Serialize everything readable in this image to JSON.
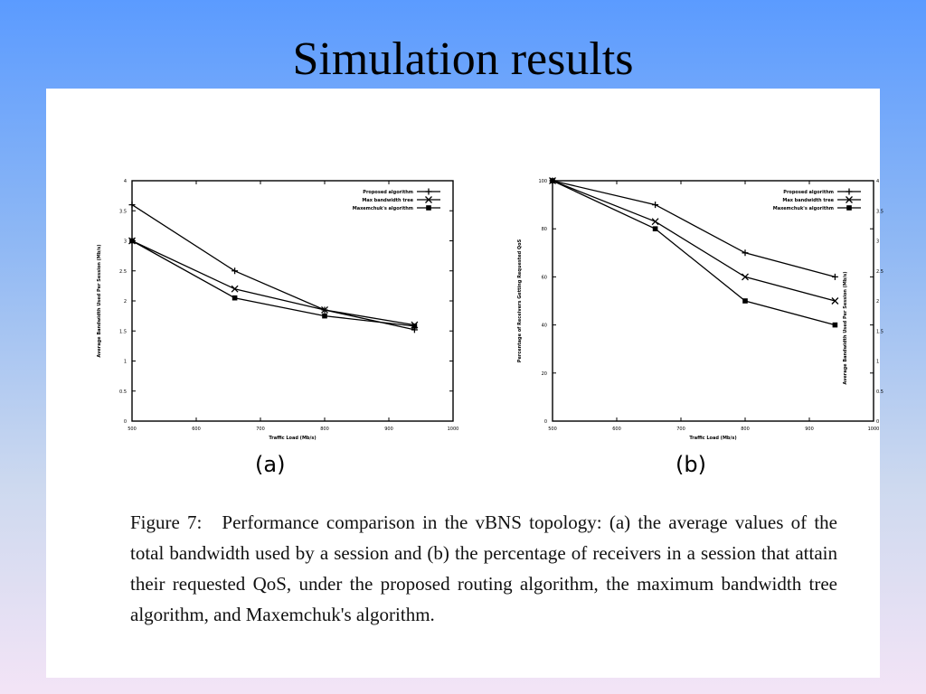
{
  "slide": {
    "title": "Simulation results"
  },
  "figure": {
    "caption_label": "Figure 7:",
    "caption_text": "Performance comparison in the vBNS topology: (a) the average values of the total bandwidth used by a session and (b) the percentage of receivers in a session that attain their requested QoS, under the proposed routing algorithm, the maximum bandwidth tree algorithm, and Maxemchuk's algorithm.",
    "panel_a_label": "(a)",
    "panel_b_label": "(b)"
  },
  "colors": {
    "line": "#000000",
    "panel_background": "#ffffff",
    "slide_gradient_top": "#5b9bff",
    "slide_gradient_bottom": "#f3e4f6"
  },
  "chart_data": [
    {
      "id": "a",
      "type": "line",
      "xlabel": "Traffic Load (Mb/s)",
      "ylabel": "Average Bandwidth Used Per Session (Mb/s)",
      "xlim": [
        500,
        1000
      ],
      "ylim": [
        0,
        4
      ],
      "xticks": [
        500,
        600,
        700,
        800,
        900,
        1000
      ],
      "yticks": [
        0,
        0.5,
        1,
        1.5,
        2,
        2.5,
        3,
        3.5,
        4
      ],
      "ytick_labels": [
        "0",
        "0.5",
        "1",
        "1.5",
        "2",
        "2.5",
        "3",
        "3.5",
        "4"
      ],
      "legend_position": "top-right",
      "series": [
        {
          "name": "Proposed algorithm",
          "marker": "plus",
          "x": [
            500,
            660,
            800,
            940
          ],
          "y": [
            3.6,
            2.5,
            1.85,
            1.52
          ]
        },
        {
          "name": "Max bandwidth tree",
          "marker": "x",
          "x": [
            500,
            660,
            800,
            940
          ],
          "y": [
            3.0,
            2.2,
            1.85,
            1.6
          ]
        },
        {
          "name": "Maxemchuk's algorithm",
          "marker": "square",
          "x": [
            500,
            660,
            800,
            940
          ],
          "y": [
            3.0,
            2.05,
            1.75,
            1.58
          ]
        }
      ]
    },
    {
      "id": "b",
      "type": "line",
      "xlabel": "Traffic Load (Mb/s)",
      "ylabel": "Percentage of Receivers Getting Requested QoS",
      "xlim": [
        500,
        1000
      ],
      "ylim": [
        0,
        100
      ],
      "xticks": [
        500,
        600,
        700,
        800,
        900,
        1000
      ],
      "yticks": [
        0,
        20,
        40,
        60,
        80,
        100
      ],
      "ytick_labels": [
        "0",
        "20",
        "40",
        "60",
        "80",
        "100"
      ],
      "right_ylabel": "Average Bandwidth Used Per Session (Mb/s)",
      "right_yticks": [
        "0",
        "0.5",
        "1",
        "1.5",
        "2",
        "2.5",
        "3",
        "3.5",
        "4"
      ],
      "legend_position": "top-right",
      "series": [
        {
          "name": "Proposed algorithm",
          "marker": "plus",
          "x": [
            500,
            660,
            800,
            940
          ],
          "y": [
            100,
            90,
            70,
            60
          ]
        },
        {
          "name": "Max bandwidth tree",
          "marker": "x",
          "x": [
            500,
            660,
            800,
            940
          ],
          "y": [
            100,
            83,
            60,
            50
          ]
        },
        {
          "name": "Maxemchuk's algorithm",
          "marker": "square",
          "x": [
            500,
            660,
            800,
            940
          ],
          "y": [
            100,
            80,
            50,
            40
          ]
        }
      ]
    }
  ]
}
